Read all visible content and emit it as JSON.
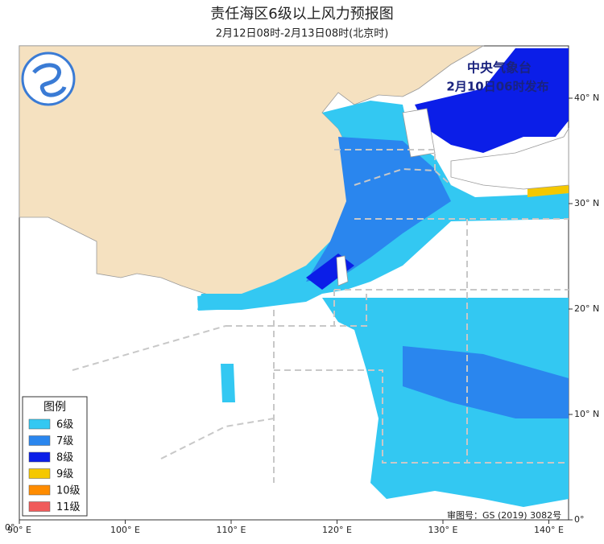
{
  "header": {
    "title": "责任海区6级以上风力预报图",
    "subtitle": "2月12日08时-2月13日08时(北京时)"
  },
  "issuer": {
    "agency": "中央气象台",
    "issued": "2月10日06时发布"
  },
  "legend": {
    "title": "图例",
    "items": [
      {
        "label": "6级",
        "color": "#33c8f2"
      },
      {
        "label": "7级",
        "color": "#2a86ee"
      },
      {
        "label": "8级",
        "color": "#0b1ee8"
      },
      {
        "label": "9级",
        "color": "#f5c800"
      },
      {
        "label": "10级",
        "color": "#ff8c00"
      },
      {
        "label": "11级",
        "color": "#f05a5a"
      }
    ]
  },
  "axes": {
    "lon_labels": [
      "90° E",
      "100° E",
      "110° E",
      "120° E",
      "130° E",
      "140° E"
    ],
    "lat_labels": [
      "40° N",
      "30° N",
      "20° N",
      "10° N",
      "0°"
    ],
    "corner_label": "0°"
  },
  "footer": {
    "review_number": "审图号：GS (2019) 3082号"
  }
}
